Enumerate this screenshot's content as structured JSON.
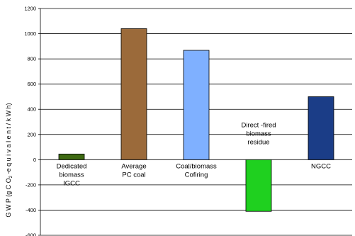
{
  "chart_data": {
    "type": "bar",
    "title": "",
    "ylabel": {
      "pre": "G W P  (g  C O",
      "sub": "2",
      "post": " -e q u i v a l e n t  /  k W h)"
    },
    "xlabel": "",
    "ylim": [
      -600,
      1200
    ],
    "yticks": [
      1200,
      1000,
      800,
      600,
      400,
      200,
      0,
      -200,
      -400,
      -600
    ],
    "grid": true,
    "legend": "none",
    "categories": [
      {
        "lines": [
          "Dedicated",
          "biomass",
          "IGCC"
        ],
        "value": 45,
        "color": "#3e6a12"
      },
      {
        "lines": [
          "Average",
          "PC coal"
        ],
        "value": 1040,
        "color": "#9b6a3a"
      },
      {
        "lines": [
          "Coal/biomass",
          "Cofiring"
        ],
        "value": 868,
        "color": "#7fb0ff"
      },
      {
        "lines": [
          "Direct   -fired",
          "biomass",
          "residue"
        ],
        "value": -410,
        "color": "#1fd01f"
      },
      {
        "lines": [
          "NGCC"
        ],
        "value": 500,
        "color": "#1b3d87"
      }
    ]
  }
}
